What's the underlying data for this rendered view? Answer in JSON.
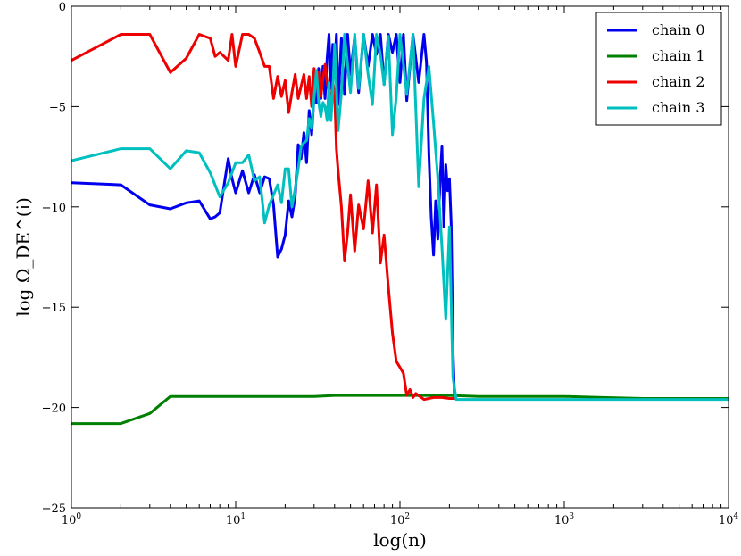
{
  "chart_data": {
    "type": "line",
    "title": "",
    "xlabel": "log(n)",
    "ylabel": "log Ω_DE^(i)",
    "xscale": "log",
    "xlim": [
      1,
      10000
    ],
    "ylim": [
      -25,
      0
    ],
    "xticks": [
      {
        "value": 1,
        "base": "10",
        "exp": "0"
      },
      {
        "value": 10,
        "base": "10",
        "exp": "1"
      },
      {
        "value": 100,
        "base": "10",
        "exp": "2"
      },
      {
        "value": 1000,
        "base": "10",
        "exp": "3"
      },
      {
        "value": 10000,
        "base": "10",
        "exp": "4"
      }
    ],
    "yticks": [
      {
        "value": 0,
        "label": "0"
      },
      {
        "value": -5,
        "label": "−5"
      },
      {
        "value": -10,
        "label": "−10"
      },
      {
        "value": -15,
        "label": "−15"
      },
      {
        "value": -20,
        "label": "−20"
      },
      {
        "value": -25,
        "label": "−25"
      }
    ],
    "grid": false,
    "legend_position": "top-right",
    "series": [
      {
        "name": "chain 0",
        "color": "#0000ee",
        "x": [
          1,
          2,
          3,
          4,
          5,
          6,
          7,
          7.5,
          8,
          9,
          9.5,
          10,
          11,
          12,
          13,
          14,
          15,
          16,
          17,
          18,
          19,
          20,
          21,
          22,
          23,
          24,
          25,
          26,
          27,
          28,
          29,
          30,
          31,
          32,
          33,
          34,
          35,
          36,
          37,
          38,
          39,
          40,
          41,
          42,
          44,
          46,
          48,
          50,
          53,
          56,
          60,
          64,
          68,
          72,
          76,
          80,
          85,
          90,
          95,
          100,
          105,
          110,
          120,
          130,
          140,
          145,
          150,
          155,
          160,
          165,
          170,
          175,
          180,
          185,
          190,
          195,
          200,
          205,
          210,
          215
        ],
        "y": [
          -8.8,
          -8.9,
          -9.9,
          -10.1,
          -9.8,
          -9.7,
          -10.6,
          -10.5,
          -10.3,
          -7.6,
          -8.6,
          -9.3,
          -8.2,
          -9.3,
          -8.4,
          -9.3,
          -8.5,
          -8.6,
          -9.9,
          -12.5,
          -12.1,
          -11.4,
          -9.7,
          -10.5,
          -9.5,
          -6.9,
          -7.6,
          -6.3,
          -7.8,
          -5.2,
          -6.4,
          -4.5,
          -4.8,
          -3.1,
          -4.6,
          -3.0,
          -4.6,
          -2.6,
          -1.4,
          -4.1,
          -1.9,
          -3.2,
          -1.4,
          -4.9,
          -1.6,
          -4.4,
          -1.4,
          -3.4,
          -1.5,
          -4.3,
          -1.4,
          -3.0,
          -1.4,
          -2.4,
          -1.4,
          -3.9,
          -1.4,
          -2.3,
          -1.4,
          -3.8,
          -1.4,
          -4.7,
          -1.4,
          -3.8,
          -1.4,
          -2.8,
          -7.4,
          -10.5,
          -12.4,
          -9.7,
          -11.6,
          -8.9,
          -7.0,
          -11.0,
          -7.9,
          -9.2,
          -8.6,
          -10.9,
          -17.0,
          -19.6
        ]
      },
      {
        "name": "chain 1",
        "color": "#008000",
        "x": [
          1,
          2,
          3,
          4,
          5,
          10,
          20,
          30,
          40,
          50,
          100,
          200,
          300,
          500,
          1000,
          1700,
          3000,
          10000
        ],
        "y": [
          -20.8,
          -20.8,
          -20.3,
          -19.45,
          -19.45,
          -19.45,
          -19.45,
          -19.45,
          -19.4,
          -19.4,
          -19.4,
          -19.4,
          -19.45,
          -19.45,
          -19.45,
          -19.5,
          -19.55,
          -19.55
        ]
      },
      {
        "name": "chain 2",
        "color": "#ee0000",
        "x": [
          1,
          2,
          3,
          4,
          5,
          6,
          7,
          7.5,
          8,
          9,
          9.5,
          10,
          11,
          12,
          13,
          14,
          15,
          16,
          17,
          18,
          19,
          20,
          21,
          22,
          23,
          24,
          25,
          26,
          27,
          28,
          29,
          30,
          31,
          32,
          33,
          34,
          35,
          36,
          37,
          38,
          39,
          40,
          41,
          42,
          44,
          46,
          48,
          50,
          53,
          56,
          60,
          64,
          68,
          72,
          76,
          80,
          85,
          90,
          95,
          100,
          105,
          110,
          115,
          120,
          125,
          140,
          160,
          180,
          200,
          220
        ],
        "y": [
          -2.7,
          -1.4,
          -1.4,
          -3.3,
          -2.6,
          -1.4,
          -1.6,
          -2.5,
          -2.3,
          -2.7,
          -1.4,
          -3.0,
          -1.4,
          -1.4,
          -1.6,
          -2.3,
          -3.0,
          -3.0,
          -4.6,
          -3.5,
          -4.5,
          -3.7,
          -5.3,
          -4.3,
          -3.4,
          -4.6,
          -4.0,
          -3.4,
          -4.6,
          -3.5,
          -5.0,
          -3.1,
          -4.1,
          -3.3,
          -4.5,
          -3.6,
          -2.9,
          -3.8,
          -4.3,
          -5.2,
          -3.8,
          -4.3,
          -7.1,
          -8.2,
          -10.0,
          -12.7,
          -11.3,
          -9.4,
          -12.2,
          -9.9,
          -11.1,
          -8.7,
          -11.3,
          -8.9,
          -12.8,
          -11.4,
          -14.0,
          -16.3,
          -17.7,
          -18.0,
          -18.3,
          -19.4,
          -19.1,
          -19.5,
          -19.3,
          -19.6,
          -19.5,
          -19.5,
          -19.55,
          -19.55
        ]
      },
      {
        "name": "chain 3",
        "color": "#00bfbf",
        "x": [
          1,
          2,
          3,
          4,
          5,
          6,
          7,
          8,
          9,
          10,
          11,
          12,
          13,
          14,
          15,
          16,
          17,
          18,
          19,
          20,
          21,
          22,
          23,
          24,
          25,
          26,
          27,
          28,
          29,
          30,
          31,
          32,
          33,
          34,
          35,
          36,
          37,
          38,
          39,
          40,
          42,
          44,
          46,
          48,
          50,
          53,
          56,
          60,
          64,
          68,
          72,
          76,
          80,
          85,
          90,
          95,
          100,
          105,
          110,
          120,
          130,
          140,
          150,
          160,
          170,
          180,
          190,
          200,
          210,
          220,
          300,
          1000,
          10000
        ],
        "y": [
          -7.7,
          -7.1,
          -7.1,
          -8.1,
          -7.2,
          -7.3,
          -8.3,
          -9.5,
          -8.8,
          -7.8,
          -7.8,
          -7.4,
          -8.7,
          -8.5,
          -10.8,
          -9.9,
          -9.4,
          -8.9,
          -9.8,
          -8.1,
          -8.1,
          -10.0,
          -9.1,
          -8.1,
          -7.0,
          -6.8,
          -6.7,
          -5.6,
          -6.1,
          -4.5,
          -3.2,
          -4.8,
          -5.5,
          -4.8,
          -5.0,
          -5.7,
          -3.8,
          -5.7,
          -4.2,
          -1.9,
          -6.2,
          -4.3,
          -1.4,
          -2.9,
          -4.3,
          -1.4,
          -4.1,
          -1.4,
          -3.4,
          -4.9,
          -1.4,
          -2.4,
          -3.9,
          -1.5,
          -6.4,
          -4.5,
          -1.4,
          -2.9,
          -4.4,
          -1.4,
          -9.0,
          -4.6,
          -3.0,
          -5.8,
          -8.6,
          -12.0,
          -15.6,
          -11.0,
          -18.5,
          -19.6,
          -19.6,
          -19.6,
          -19.6
        ]
      }
    ]
  }
}
